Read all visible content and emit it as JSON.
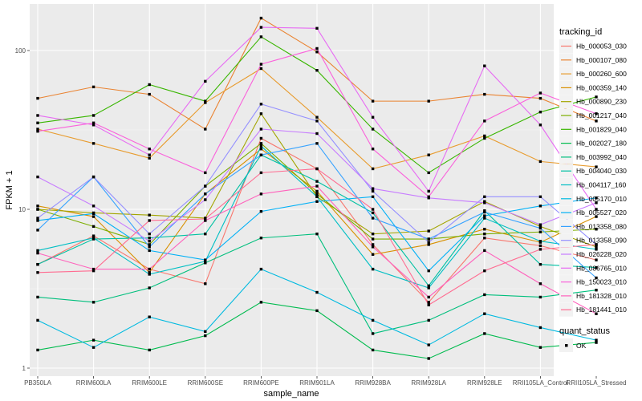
{
  "chart_data": {
    "type": "line",
    "title": "",
    "xlabel": "sample_name",
    "ylabel": "FPKM + 1",
    "yscale": "log10",
    "ylim": [
      0.93,
      190
    ],
    "yticks": [
      1,
      10,
      100
    ],
    "ytick_labels": [
      "1",
      "10",
      "100"
    ],
    "grid": true,
    "legend_position": "right",
    "categories": [
      "PB350LA",
      "RRIM600LA",
      "RRIM600LE",
      "RRIM600SE",
      "RRIM600PE",
      "RRIM901LA",
      "RRIM928BA",
      "RRIM928LA",
      "RRIM928LE",
      "RRII105LA_Control",
      "RRII105LA_Stressed"
    ],
    "legend_title": "tracking_id",
    "shape_legend_title": "quant_status",
    "shape_legend_items": [
      "OK"
    ],
    "series": [
      {
        "name": "Hb_000053_030",
        "color": "#F8766D",
        "values": [
          4.5,
          6.8,
          4.2,
          3.4,
          28,
          18,
          6.0,
          2.6,
          6.6,
          5.9,
          4.8
        ]
      },
      {
        "name": "Hb_000107_080",
        "color": "#EA8331",
        "values": [
          50,
          59,
          53,
          32,
          160,
          98,
          48,
          48,
          53,
          50,
          36
        ]
      },
      {
        "name": "Hb_000260_600",
        "color": "#E89C2F",
        "values": [
          32,
          26,
          21,
          47,
          77,
          38,
          18,
          22,
          29,
          20,
          18.5
        ]
      },
      {
        "name": "Hb_000359_140",
        "color": "#D89000",
        "values": [
          10.5,
          9,
          4.0,
          12.5,
          24,
          13,
          5.2,
          6.0,
          7.5,
          6.2,
          9
        ]
      },
      {
        "name": "Hb_000890_230",
        "color": "#A3A500",
        "values": [
          10,
          9.5,
          9.2,
          8.8,
          40,
          12,
          7.0,
          7.3,
          11.2,
          7.8,
          5.8
        ]
      },
      {
        "name": "Hb_001217_040",
        "color": "#7CAE00",
        "values": [
          10,
          7.8,
          6.0,
          14,
          26,
          12.5,
          6.5,
          6.5,
          7.0,
          7.2,
          7.5
        ]
      },
      {
        "name": "Hb_001829_040",
        "color": "#39B600",
        "values": [
          35,
          39,
          61,
          48,
          122,
          75,
          32,
          17,
          28,
          41,
          51
        ]
      },
      {
        "name": "Hb_002027_180",
        "color": "#00BB4E",
        "values": [
          1.3,
          1.5,
          1.3,
          1.6,
          2.6,
          2.3,
          1.3,
          1.15,
          1.65,
          1.35,
          1.45
        ]
      },
      {
        "name": "Hb_003992_040",
        "color": "#00BF7D",
        "values": [
          2.8,
          2.6,
          3.2,
          4.6,
          6.6,
          7.0,
          1.65,
          2.0,
          2.9,
          2.8,
          3.1
        ]
      },
      {
        "name": "Hb_004040_030",
        "color": "#00C1A3",
        "values": [
          4.5,
          6.5,
          6.6,
          7.0,
          22,
          15,
          9.5,
          3.3,
          9.8,
          4.5,
          4.3
        ]
      },
      {
        "name": "Hb_004117_160",
        "color": "#00BFC4",
        "values": [
          5.5,
          6.6,
          3.9,
          4.7,
          25,
          12,
          4.2,
          3.2,
          8.8,
          6.3,
          5.6
        ]
      },
      {
        "name": "Hb_005170_010",
        "color": "#00BAE0",
        "values": [
          2.0,
          1.35,
          2.1,
          1.7,
          4.2,
          3.0,
          2.0,
          1.4,
          2.2,
          1.8,
          1.5
        ]
      },
      {
        "name": "Hb_005527_020",
        "color": "#00B0F6",
        "values": [
          8.5,
          9.4,
          5.5,
          4.8,
          9.7,
          11.2,
          12,
          4.1,
          9.1,
          10.5,
          11.8
        ]
      },
      {
        "name": "Hb_013358_080",
        "color": "#35A2FF",
        "values": [
          7.4,
          16,
          5.8,
          12.5,
          22,
          26,
          8.8,
          6.5,
          9.6,
          7.6,
          3.7
        ]
      },
      {
        "name": "Hb_013358_090",
        "color": "#9590FF",
        "values": [
          8.8,
          16,
          7.0,
          14,
          46,
          36,
          13,
          6.2,
          12,
          12,
          6
        ]
      },
      {
        "name": "Hb_026228_020",
        "color": "#C77CFF",
        "values": [
          16,
          10.5,
          6.3,
          11.5,
          32,
          30,
          13.5,
          11.8,
          11,
          8.0,
          11
        ]
      },
      {
        "name": "Hb_086765_010",
        "color": "#E76BF3",
        "values": [
          39,
          34,
          22,
          64,
          140,
          138,
          38,
          13,
          80,
          34,
          10
        ]
      },
      {
        "name": "Hb_150023_010",
        "color": "#FA62DB",
        "values": [
          31,
          35,
          24,
          17,
          82,
          103,
          24,
          12,
          36,
          54,
          40
        ]
      },
      {
        "name": "Hb_181328_010",
        "color": "#FF62BC",
        "values": [
          5.3,
          4.2,
          4.2,
          8.5,
          12.5,
          14,
          5.8,
          2.8,
          5.5,
          3.4,
          2.2
        ]
      },
      {
        "name": "Hb_181441_010",
        "color": "#FF6C91",
        "values": [
          4.0,
          4.1,
          8.5,
          8.7,
          17,
          18,
          10,
          2.5,
          4.1,
          5.6,
          6.0
        ]
      }
    ]
  }
}
